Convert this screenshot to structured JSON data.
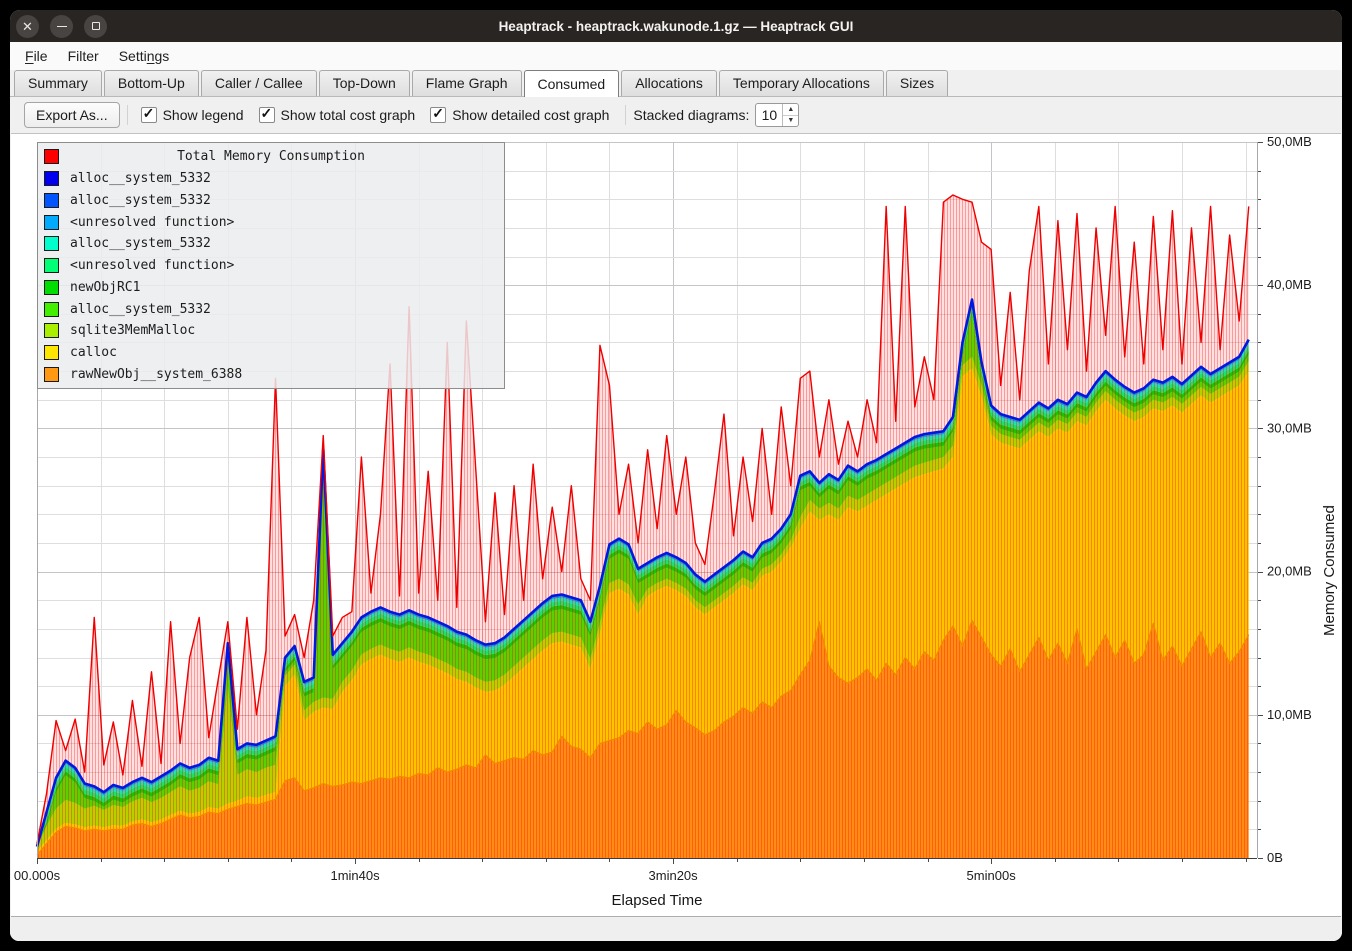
{
  "window": {
    "title": "Heaptrack - heaptrack.wakunode.1.gz — Heaptrack GUI",
    "controls": [
      "close",
      "minimize",
      "maximize"
    ]
  },
  "menu": {
    "items": [
      {
        "label": "File",
        "accel": 0
      },
      {
        "label": "Filter",
        "accel": -1
      },
      {
        "label": "Settings",
        "accel": 5
      }
    ]
  },
  "tabs": {
    "items": [
      "Summary",
      "Bottom-Up",
      "Caller / Callee",
      "Top-Down",
      "Flame Graph",
      "Consumed",
      "Allocations",
      "Temporary Allocations",
      "Sizes"
    ],
    "active": "Consumed"
  },
  "toolbar": {
    "export_label": "Export As...",
    "checkboxes": [
      {
        "label": "Show legend",
        "checked": true
      },
      {
        "label": "Show total cost graph",
        "checked": true
      },
      {
        "label": "Show detailed cost graph",
        "checked": true
      }
    ],
    "stacked_label": "Stacked diagrams:",
    "stacked_value": "10"
  },
  "legend": {
    "title": {
      "label": "Total Memory Consumption",
      "color": "#ff0000"
    },
    "items": [
      {
        "label": "alloc__system_5332",
        "color": "#0000ee"
      },
      {
        "label": "alloc__system_5332",
        "color": "#0055ff"
      },
      {
        "label": "<unresolved function>",
        "color": "#00aaff"
      },
      {
        "label": "alloc__system_5332",
        "color": "#00ffcc"
      },
      {
        "label": "<unresolved function>",
        "color": "#00ff77"
      },
      {
        "label": "newObjRC1",
        "color": "#00dd00"
      },
      {
        "label": "alloc__system_5332",
        "color": "#44ee00"
      },
      {
        "label": "sqlite3MemMalloc",
        "color": "#aaee00"
      },
      {
        "label": "calloc",
        "color": "#ffe600"
      },
      {
        "label": "rawNewObj__system_6388",
        "color": "#ff9913"
      }
    ]
  },
  "chart_data": {
    "type": "area",
    "title": "Total Memory Consumption",
    "xlabel": "Elapsed Time",
    "ylabel": "Memory Consumed",
    "x_range_s": [
      0,
      383.6
    ],
    "y_range_mb": [
      0,
      50
    ],
    "x_minor_step_s": 20,
    "y_minor_step_mb": 2,
    "grid": true,
    "legend_position": "top-left",
    "x_major_ticks": [
      {
        "t": 0,
        "label": "00.000s"
      },
      {
        "t": 100,
        "label": "1min40s"
      },
      {
        "t": 200,
        "label": "3min20s"
      },
      {
        "t": 300,
        "label": "5min00s"
      }
    ],
    "y_major_ticks": [
      {
        "mb": 0,
        "label": "0B"
      },
      {
        "mb": 10,
        "label": "10,0MB"
      },
      {
        "mb": 20,
        "label": "20,0MB"
      },
      {
        "mb": 30,
        "label": "30,0MB"
      },
      {
        "mb": 40,
        "label": "40,0MB"
      },
      {
        "mb": 50,
        "label": "50,0MB"
      }
    ],
    "sample_step_s": 3,
    "series": [
      {
        "name": "Total Memory Consumption",
        "role": "total_line",
        "color": "#ee0000",
        "fill": "rgba(255,0,0,0.12)",
        "hatch": "rgba(255,0,0,0.32)",
        "values_mb": [
          1.0,
          4.5,
          9.6,
          7.5,
          9.7,
          6.0,
          16.8,
          6.5,
          9.5,
          5.8,
          11.0,
          6.4,
          13.0,
          6.6,
          16.5,
          8.0,
          14.0,
          16.8,
          8.4,
          12.5,
          16.5,
          9.0,
          16.8,
          10.0,
          14.5,
          33.5,
          15.5,
          17.0,
          14.0,
          18.0,
          29.5,
          15.5,
          16.8,
          17.2,
          28.0,
          18.5,
          24.0,
          34.5,
          18.3,
          38.5,
          18.5,
          27.0,
          18.0,
          36.0,
          17.5,
          37.5,
          27.0,
          16.5,
          25.5,
          17.0,
          26.0,
          18.0,
          27.5,
          19.5,
          24.5,
          20.0,
          26.0,
          19.5,
          18.0,
          35.8,
          33.0,
          24.0,
          27.5,
          22.0,
          28.5,
          23.0,
          29.5,
          24.0,
          28.0,
          22.0,
          20.5,
          25.5,
          31.0,
          22.5,
          28.0,
          23.5,
          30.0,
          24.0,
          31.5,
          26.0,
          33.5,
          34.0,
          28.0,
          32.0,
          27.5,
          30.5,
          28.0,
          32.0,
          29.0,
          45.5,
          30.5,
          45.5,
          31.5,
          35.0,
          32.0,
          45.8,
          46.3,
          46.0,
          45.8,
          43.0,
          42.5,
          33.0,
          39.5,
          32.0,
          41.0,
          45.5,
          34.5,
          44.5,
          35.5,
          45.0,
          34.0,
          44.0,
          36.5,
          45.5,
          35.0,
          43.0,
          34.5,
          44.8,
          35.5,
          45.2,
          34.5,
          44.0,
          36.0,
          45.5,
          35.5,
          43.5,
          37.5,
          45.5
        ]
      },
      {
        "name": "alloc__system_5332 (stack top / blue line)",
        "role": "stack_top",
        "color": "#0019e0",
        "values_mb": [
          0.8,
          3.2,
          5.6,
          6.8,
          6.3,
          5.2,
          5.0,
          4.6,
          5.1,
          4.9,
          5.3,
          5.6,
          5.3,
          5.7,
          6.1,
          6.6,
          6.3,
          6.5,
          7.0,
          6.8,
          15.0,
          7.6,
          8.0,
          7.9,
          8.2,
          8.5,
          14.0,
          14.8,
          12.3,
          12.6,
          28.6,
          14.2,
          15.0,
          15.8,
          16.8,
          17.2,
          17.5,
          17.2,
          17.0,
          17.3,
          17.0,
          16.8,
          16.5,
          16.2,
          15.8,
          15.6,
          15.2,
          14.9,
          15.0,
          15.4,
          16.0,
          16.6,
          17.2,
          17.8,
          18.3,
          18.4,
          18.2,
          18.0,
          16.5,
          19.0,
          21.9,
          22.3,
          21.9,
          20.2,
          20.6,
          21.0,
          21.3,
          21.0,
          20.6,
          19.8,
          19.3,
          19.8,
          20.3,
          20.8,
          21.4,
          21.0,
          22.0,
          22.3,
          23.0,
          24.0,
          26.7,
          27.0,
          26.2,
          26.8,
          26.4,
          27.4,
          27.0,
          27.5,
          27.8,
          28.2,
          28.6,
          29.0,
          29.4,
          29.6,
          29.7,
          29.8,
          30.8,
          36.0,
          39.0,
          34.6,
          31.6,
          31.0,
          30.8,
          30.6,
          31.2,
          31.8,
          31.4,
          32.0,
          31.7,
          32.5,
          32.2,
          33.2,
          34.0,
          33.4,
          32.9,
          32.5,
          32.8,
          33.4,
          33.2,
          33.6,
          33.1,
          33.7,
          34.3,
          33.8,
          34.2,
          34.6,
          35.0,
          36.2
        ]
      },
      {
        "name": "sqlite3MemMalloc (top of band)",
        "role": "sqlite_top",
        "color": "#aaee00",
        "values_mb": [
          0.85,
          2.25,
          3.45,
          4.05,
          3.85,
          3.45,
          3.65,
          3.35,
          3.7,
          3.55,
          3.95,
          4.2,
          3.9,
          4.2,
          4.6,
          5.0,
          4.7,
          4.9,
          5.35,
          5.15,
          12.0,
          5.8,
          6.2,
          6.0,
          6.3,
          6.5,
          12.7,
          13.5,
          10.3,
          10.9,
          11.2,
          11.1,
          12.3,
          13.1,
          14.2,
          14.6,
          14.9,
          14.6,
          14.4,
          14.7,
          14.4,
          14.2,
          13.9,
          13.6,
          13.2,
          13.0,
          12.6,
          12.3,
          12.4,
          12.8,
          13.4,
          14.0,
          14.6,
          15.2,
          15.7,
          15.8,
          15.6,
          15.4,
          13.9,
          16.4,
          19.2,
          19.5,
          19.1,
          17.7,
          18.8,
          19.2,
          19.5,
          19.2,
          18.8,
          18.0,
          17.5,
          18.0,
          18.5,
          19.0,
          19.6,
          19.2,
          20.2,
          20.5,
          21.2,
          22.2,
          23.8,
          25.0,
          24.4,
          24.8,
          24.4,
          25.3,
          25.0,
          25.4,
          25.8,
          26.2,
          26.6,
          27.0,
          27.4,
          27.6,
          27.8,
          28.0,
          28.8,
          34.4,
          35.0,
          33.0,
          30.2,
          29.6,
          29.4,
          29.2,
          29.8,
          30.4,
          30.0,
          30.6,
          30.3,
          31.1,
          30.8,
          31.8,
          32.6,
          32.0,
          31.5,
          31.1,
          31.4,
          32.0,
          31.8,
          32.2,
          31.7,
          32.3,
          32.9,
          32.4,
          32.8,
          33.2,
          33.6,
          34.7
        ]
      },
      {
        "name": "calloc (top of band)",
        "role": "calloc_top",
        "color": "#ffe000",
        "values_mb": [
          0.45,
          1.25,
          2.05,
          2.45,
          2.35,
          2.15,
          2.25,
          2.15,
          2.3,
          2.25,
          2.55,
          2.7,
          2.5,
          2.7,
          3.0,
          3.3,
          3.1,
          3.2,
          3.55,
          3.45,
          3.8,
          4.0,
          4.3,
          4.2,
          4.4,
          4.6,
          12.0,
          12.8,
          9.6,
          10.2,
          10.5,
          10.4,
          11.6,
          12.4,
          13.5,
          13.9,
          14.2,
          13.9,
          13.7,
          14.0,
          13.7,
          13.5,
          13.2,
          12.9,
          12.5,
          12.3,
          11.9,
          11.6,
          11.7,
          12.1,
          12.7,
          13.3,
          13.9,
          14.5,
          15.0,
          15.1,
          14.9,
          14.7,
          13.2,
          15.7,
          18.5,
          18.8,
          18.4,
          17.0,
          18.3,
          18.7,
          19.0,
          18.7,
          18.3,
          17.5,
          17.0,
          17.5,
          18.0,
          18.5,
          19.1,
          18.7,
          19.7,
          20.0,
          20.7,
          21.7,
          23.0,
          24.2,
          23.6,
          24.0,
          23.6,
          24.5,
          24.2,
          24.6,
          25.0,
          25.4,
          25.8,
          26.2,
          26.6,
          26.8,
          27.0,
          27.2,
          28.0,
          33.6,
          34.2,
          32.2,
          29.6,
          29.0,
          28.8,
          28.6,
          29.2,
          29.8,
          29.4,
          30.0,
          29.7,
          30.5,
          30.2,
          31.2,
          32.0,
          31.4,
          30.9,
          30.5,
          30.8,
          31.4,
          31.2,
          31.6,
          31.1,
          31.7,
          32.3,
          31.8,
          32.2,
          32.6,
          33.0,
          34.0
        ]
      },
      {
        "name": "rawNewObj__system_6388 (top of band)",
        "role": "orange_top",
        "color": "#ffa019",
        "edge": "#ef8a00",
        "values_mb": [
          0.2,
          1.0,
          1.8,
          2.2,
          2.1,
          1.9,
          2.0,
          1.9,
          2.0,
          2.0,
          2.3,
          2.4,
          2.2,
          2.4,
          2.7,
          3.0,
          2.8,
          2.9,
          3.2,
          3.1,
          3.4,
          3.6,
          3.8,
          3.7,
          3.9,
          4.1,
          5.4,
          5.6,
          4.7,
          4.9,
          5.2,
          5.0,
          5.1,
          5.3,
          5.2,
          5.4,
          5.6,
          5.5,
          5.7,
          5.6,
          5.9,
          5.8,
          6.3,
          6.0,
          6.2,
          6.5,
          6.3,
          7.2,
          6.6,
          6.8,
          7.0,
          6.9,
          7.5,
          7.2,
          7.4,
          8.5,
          7.8,
          7.6,
          7.0,
          8.0,
          8.2,
          8.4,
          8.9,
          8.7,
          9.5,
          9.0,
          9.3,
          10.3,
          9.5,
          9.1,
          8.6,
          8.9,
          9.5,
          9.9,
          10.5,
          10.1,
          10.9,
          10.5,
          11.3,
          11.7,
          12.8,
          13.8,
          16.5,
          13.4,
          12.6,
          12.2,
          12.6,
          13.2,
          12.4,
          13.6,
          12.8,
          14.0,
          13.2,
          14.4,
          13.8,
          15.2,
          16.2,
          14.8,
          16.6,
          15.4,
          14.2,
          13.4,
          14.6,
          13.0,
          14.2,
          15.4,
          13.8,
          15.0,
          13.6,
          16.0,
          13.2,
          14.4,
          15.6,
          14.0,
          15.2,
          13.6,
          14.2,
          16.4,
          13.8,
          14.8,
          13.4,
          14.6,
          15.8,
          14.0,
          15.0,
          13.6,
          14.4,
          15.6
        ]
      }
    ],
    "green_fill": {
      "color": "#44ee00",
      "note": "fills between sqlite_top and stack_top minus fringe bands"
    },
    "fringe_band_total_mb": 1.03,
    "fringe_bands": [
      {
        "color": "#00dd00",
        "mb": 0.3
      },
      {
        "color": "#00ff77",
        "mb": 0.3
      },
      {
        "color": "#00ffcc",
        "mb": 0.22
      },
      {
        "color": "#00aaff",
        "mb": 0.13
      },
      {
        "color": "#0055ff",
        "mb": 0.08
      }
    ]
  }
}
